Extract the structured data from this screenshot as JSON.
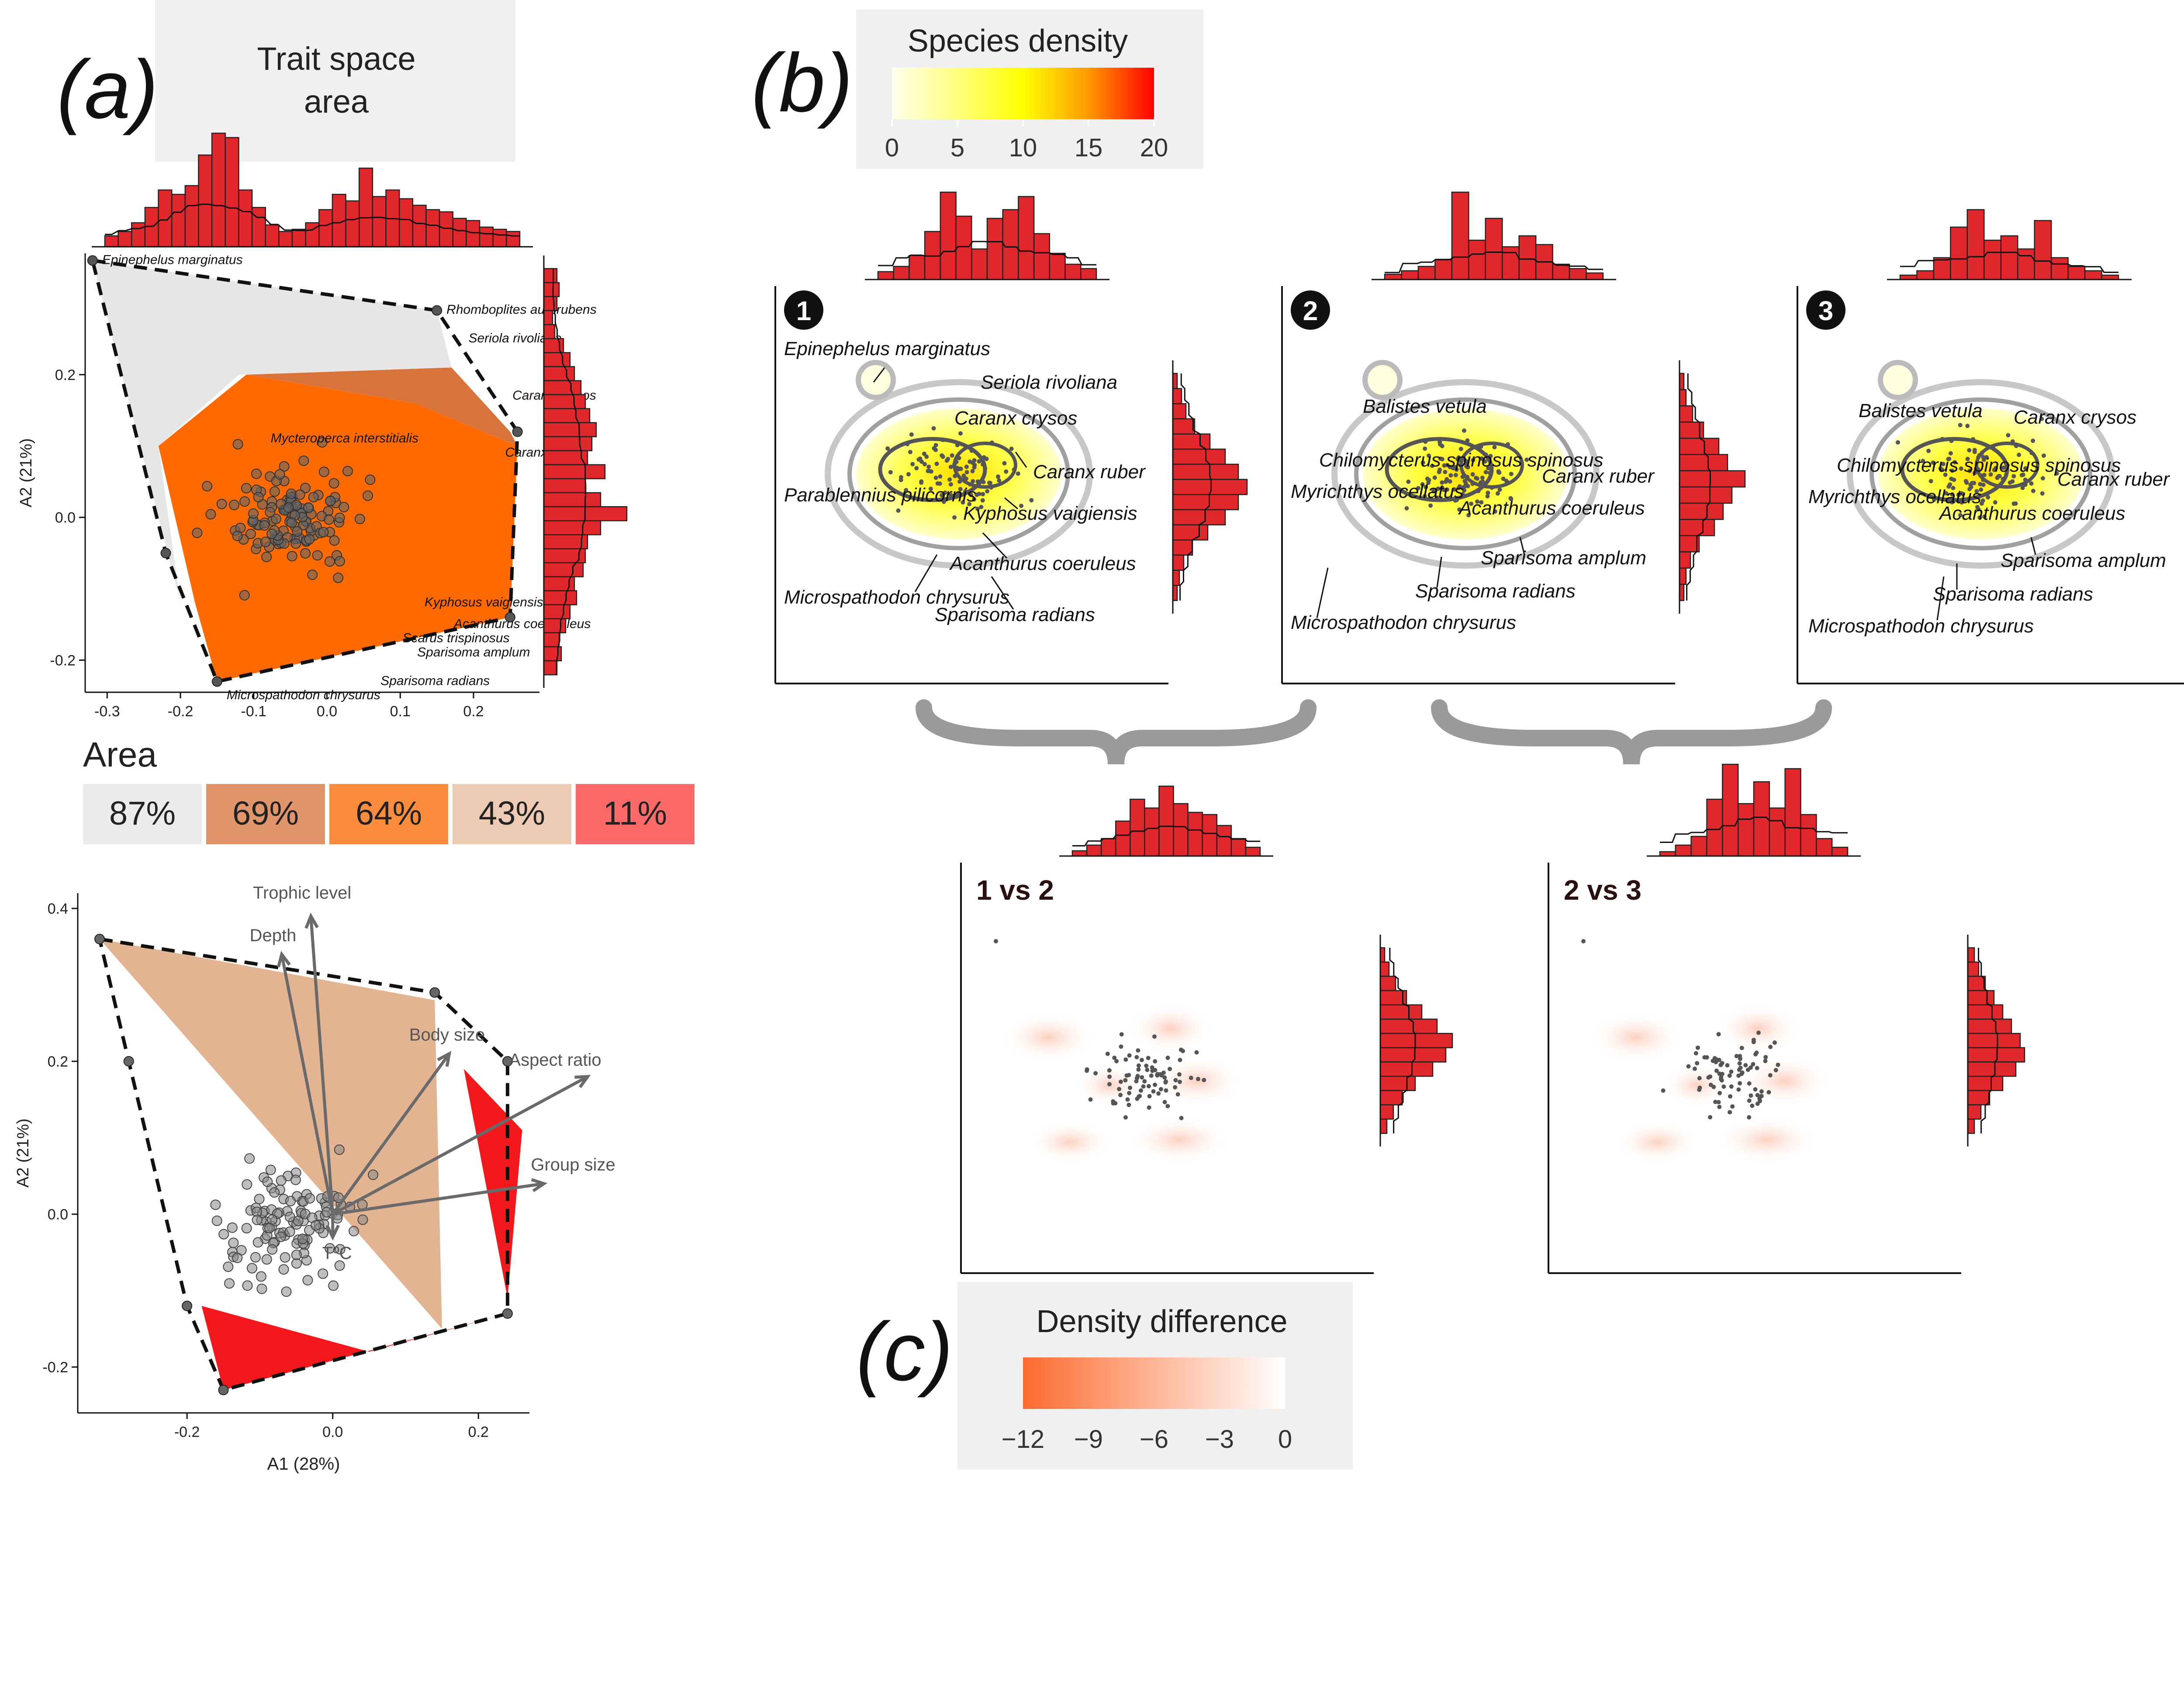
{
  "panel_labels": {
    "a": "(a)",
    "b": "(b)",
    "c": "(c)"
  },
  "colors": {
    "hist_fill": "#e0272c",
    "hull_grey": "#e6e6e6",
    "hull_orange": "#ff6a00",
    "hull_orange_dark": "#d9733c",
    "hull_tan": "#e3b491",
    "hull_red": "#f2181c",
    "density_low": "#ffffcc",
    "density_mid": "#ffff00",
    "density_high": "#ff0000",
    "diff_low": "#fc6b2f",
    "diff_high": "#ffffff"
  },
  "trait_space_legend": {
    "title_line1": "Trait space",
    "title_line2": "area"
  },
  "area_legend": {
    "title": "Area",
    "items": [
      {
        "label": "87%",
        "color": "#ebebeb"
      },
      {
        "label": "69%",
        "color": "#e0956a"
      },
      {
        "label": "64%",
        "color": "#fb8c3e"
      },
      {
        "label": "43%",
        "color": "#eccab4"
      },
      {
        "label": "11%",
        "color": "#fc6a6a"
      }
    ]
  },
  "species_density_legend": {
    "title": "Species density",
    "ticks": [
      "0",
      "5",
      "10",
      "15",
      "20"
    ]
  },
  "density_difference_legend": {
    "title": "Density difference",
    "ticks": [
      "−12",
      "−9",
      "−6",
      "−3",
      "0"
    ]
  },
  "chart_data": [
    {
      "id": "trait-space-area",
      "type": "scatter",
      "xlabel": "",
      "ylabel": "A2 (21%)",
      "xlim": [
        -0.33,
        0.29
      ],
      "ylim": [
        -0.245,
        0.37
      ],
      "x_ticks": [
        "-0.3",
        "-0.2",
        "-0.1",
        "0.0",
        "0.1",
        "0.2"
      ],
      "y_ticks": [
        "-0.2",
        "0.0",
        "0.2"
      ],
      "hull_outer": [
        [
          -0.32,
          0.36
        ],
        [
          0.15,
          0.29
        ],
        [
          0.26,
          0.12
        ],
        [
          0.25,
          -0.14
        ],
        [
          -0.15,
          -0.23
        ],
        [
          -0.22,
          -0.05
        ]
      ],
      "hull_grey": [
        [
          -0.32,
          0.36
        ],
        [
          0.15,
          0.29
        ],
        [
          0.17,
          0.21
        ],
        [
          -0.12,
          0.2
        ],
        [
          -0.23,
          0.1
        ],
        [
          -0.2,
          -0.12
        ]
      ],
      "hull_orange": [
        [
          -0.11,
          0.2
        ],
        [
          0.12,
          0.16
        ],
        [
          0.26,
          0.1
        ],
        [
          0.25,
          -0.14
        ],
        [
          -0.15,
          -0.23
        ],
        [
          -0.18,
          -0.12
        ],
        [
          -0.23,
          0.1
        ]
      ],
      "hull_orange_dark": [
        [
          -0.11,
          0.2
        ],
        [
          0.17,
          0.21
        ],
        [
          0.25,
          0.12
        ],
        [
          0.26,
          0.1
        ],
        [
          0.12,
          0.16
        ]
      ],
      "labels": [
        {
          "text": "Epinephelus marginatus",
          "x": -0.32,
          "y": 0.36
        },
        {
          "text": "Rhomboplites aurorubens",
          "x": 0.15,
          "y": 0.29
        },
        {
          "text": "Seriola rivoliana",
          "x": 0.18,
          "y": 0.25
        },
        {
          "text": "Caranx crysos",
          "x": 0.24,
          "y": 0.17
        },
        {
          "text": "Mycteroperca interstitialis",
          "x": -0.09,
          "y": 0.11
        },
        {
          "text": "Caranx ruber",
          "x": 0.23,
          "y": 0.09
        },
        {
          "text": "Kyphosus vaigiensis",
          "x": 0.12,
          "y": -0.12
        },
        {
          "text": "Acanthurus coeleruleus",
          "x": 0.16,
          "y": -0.15
        },
        {
          "text": "Scarus trispinosus",
          "x": 0.09,
          "y": -0.17
        },
        {
          "text": "Sparisoma amplum",
          "x": 0.11,
          "y": -0.19
        },
        {
          "text": "Sparisoma radians",
          "x": 0.06,
          "y": -0.23
        },
        {
          "text": "Microspathodon chrysurus",
          "x": -0.15,
          "y": -0.25
        }
      ]
    },
    {
      "id": "trait-biplot",
      "type": "scatter",
      "xlabel": "A1 (28%)",
      "ylabel": "A2 (21%)",
      "xlim": [
        -0.35,
        0.27
      ],
      "ylim": [
        -0.26,
        0.42
      ],
      "x_ticks": [
        "-0.2",
        "0.0",
        "0.2"
      ],
      "y_ticks": [
        "-0.2",
        "0.0",
        "0.2",
        "0.4"
      ],
      "hull_outer": [
        [
          -0.32,
          0.36
        ],
        [
          0.14,
          0.29
        ],
        [
          0.24,
          0.2
        ],
        [
          0.24,
          -0.13
        ],
        [
          -0.15,
          -0.23
        ],
        [
          -0.2,
          -0.12
        ],
        [
          -0.28,
          0.2
        ]
      ],
      "hull_tan": [
        [
          -0.32,
          0.36
        ],
        [
          0.14,
          0.28
        ],
        [
          0.15,
          -0.15
        ]
      ],
      "hull_red": [
        [
          0.18,
          0.19
        ],
        [
          0.26,
          0.11
        ],
        [
          0.24,
          -0.11
        ]
      ],
      "hull_red2": [
        [
          -0.18,
          -0.12
        ],
        [
          -0.15,
          -0.23
        ],
        [
          0.24,
          -0.13
        ],
        [
          0.05,
          -0.18
        ]
      ],
      "vectors": [
        {
          "label": "Trophic level",
          "x": -0.03,
          "y": 0.39
        },
        {
          "label": "Depth",
          "x": -0.07,
          "y": 0.34
        },
        {
          "label": "Body size",
          "x": 0.16,
          "y": 0.21
        },
        {
          "label": "Aspect ratio",
          "x": 0.35,
          "y": 0.18
        },
        {
          "label": "Group size",
          "x": 0.29,
          "y": 0.04
        },
        {
          "label": "TºC",
          "x": 0.0,
          "y": -0.03
        }
      ]
    },
    {
      "id": "density-1",
      "type": "heatmap",
      "badge": "1",
      "labels": [
        "Epinephelus marginatus",
        "Seriola rivoliana",
        "Caranx crysos",
        "Caranx ruber",
        "Parablennius pilicornis",
        "Kyphosus vaigiensis",
        "Acanthurus coeruleus",
        "Microspathodon chrysurus",
        "Sparisoma radians"
      ]
    },
    {
      "id": "density-2",
      "type": "heatmap",
      "badge": "2",
      "labels": [
        "Balistes vetula",
        "Chilomycterus spinosus spinosus",
        "Caranx ruber",
        "Myrichthys ocellatus",
        "Acanthurus coeruleus",
        "Sparisoma amplum",
        "Sparisoma radians",
        "Microspathodon chrysurus"
      ]
    },
    {
      "id": "density-3",
      "type": "heatmap",
      "badge": "3",
      "labels": [
        "Balistes vetula",
        "Caranx crysos",
        "Chilomycterus spinosus spinosus",
        "Caranx ruber",
        "Myrichthys ocellatus",
        "Acanthurus coeruleus",
        "Sparisoma amplum",
        "Sparisoma radians",
        "Microspathodon chrysurus"
      ]
    },
    {
      "id": "diff-1v2",
      "type": "heatmap",
      "title": "1 vs 2"
    },
    {
      "id": "diff-2v3",
      "type": "heatmap",
      "title": "2 vs 3"
    }
  ]
}
